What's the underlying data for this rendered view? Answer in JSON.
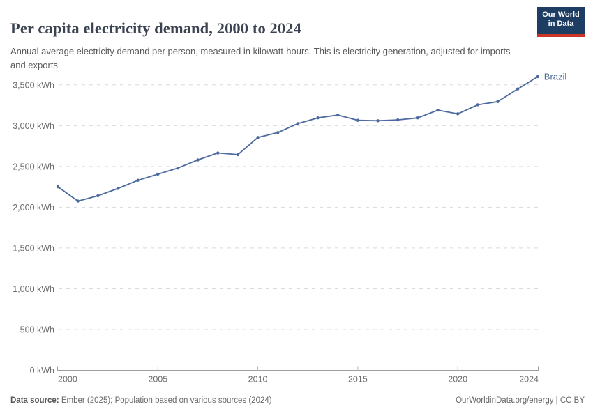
{
  "header": {
    "title": "Per capita electricity demand, 2000 to 2024",
    "subtitle": "Annual average electricity demand per person, measured in kilowatt-hours. This is electricity generation, adjusted for imports and exports.",
    "logo": {
      "line1": "Our World",
      "line2": "in Data",
      "bg_color": "#1d3d63",
      "accent_color": "#cc3425"
    }
  },
  "chart_data": {
    "type": "line",
    "title": "Per capita electricity demand, 2000 to 2024",
    "xlabel": "",
    "ylabel": "",
    "unit": "kWh",
    "x": [
      2000,
      2001,
      2002,
      2003,
      2004,
      2005,
      2006,
      2007,
      2008,
      2009,
      2010,
      2011,
      2012,
      2013,
      2014,
      2015,
      2016,
      2017,
      2018,
      2019,
      2020,
      2021,
      2022,
      2023,
      2024
    ],
    "series": [
      {
        "name": "Brazil",
        "color": "#4C6A9F",
        "values": [
          2250,
          2075,
          2140,
          2230,
          2330,
          2405,
          2480,
          2580,
          2665,
          2645,
          2855,
          2915,
          3025,
          3095,
          3130,
          3065,
          3060,
          3070,
          3095,
          3190,
          3145,
          3255,
          3295,
          3450,
          3600
        ]
      }
    ],
    "xlim": [
      2000,
      2024
    ],
    "ylim": [
      0,
      3500
    ],
    "xticks": [
      2000,
      2005,
      2010,
      2015,
      2020,
      2024
    ],
    "yticks": [
      0,
      500,
      1000,
      1500,
      2000,
      2500,
      3000,
      3500
    ],
    "ytick_labels": [
      "0 kWh",
      "500 kWh",
      "1,000 kWh",
      "1,500 kWh",
      "2,000 kWh",
      "2,500 kWh",
      "3,000 kWh",
      "3,500 kWh"
    ],
    "grid": "horizontal-dashed",
    "legend_position": "end-of-line",
    "colors": {
      "grid": "#dadada",
      "axis": "#9e9e9e",
      "tick_label": "#6b6b6b"
    }
  },
  "footer": {
    "datasource_label": "Data source:",
    "datasource_text": " Ember (2025); Population based on various sources (2024)",
    "right_text": "OurWorldinData.org/energy | CC BY"
  }
}
